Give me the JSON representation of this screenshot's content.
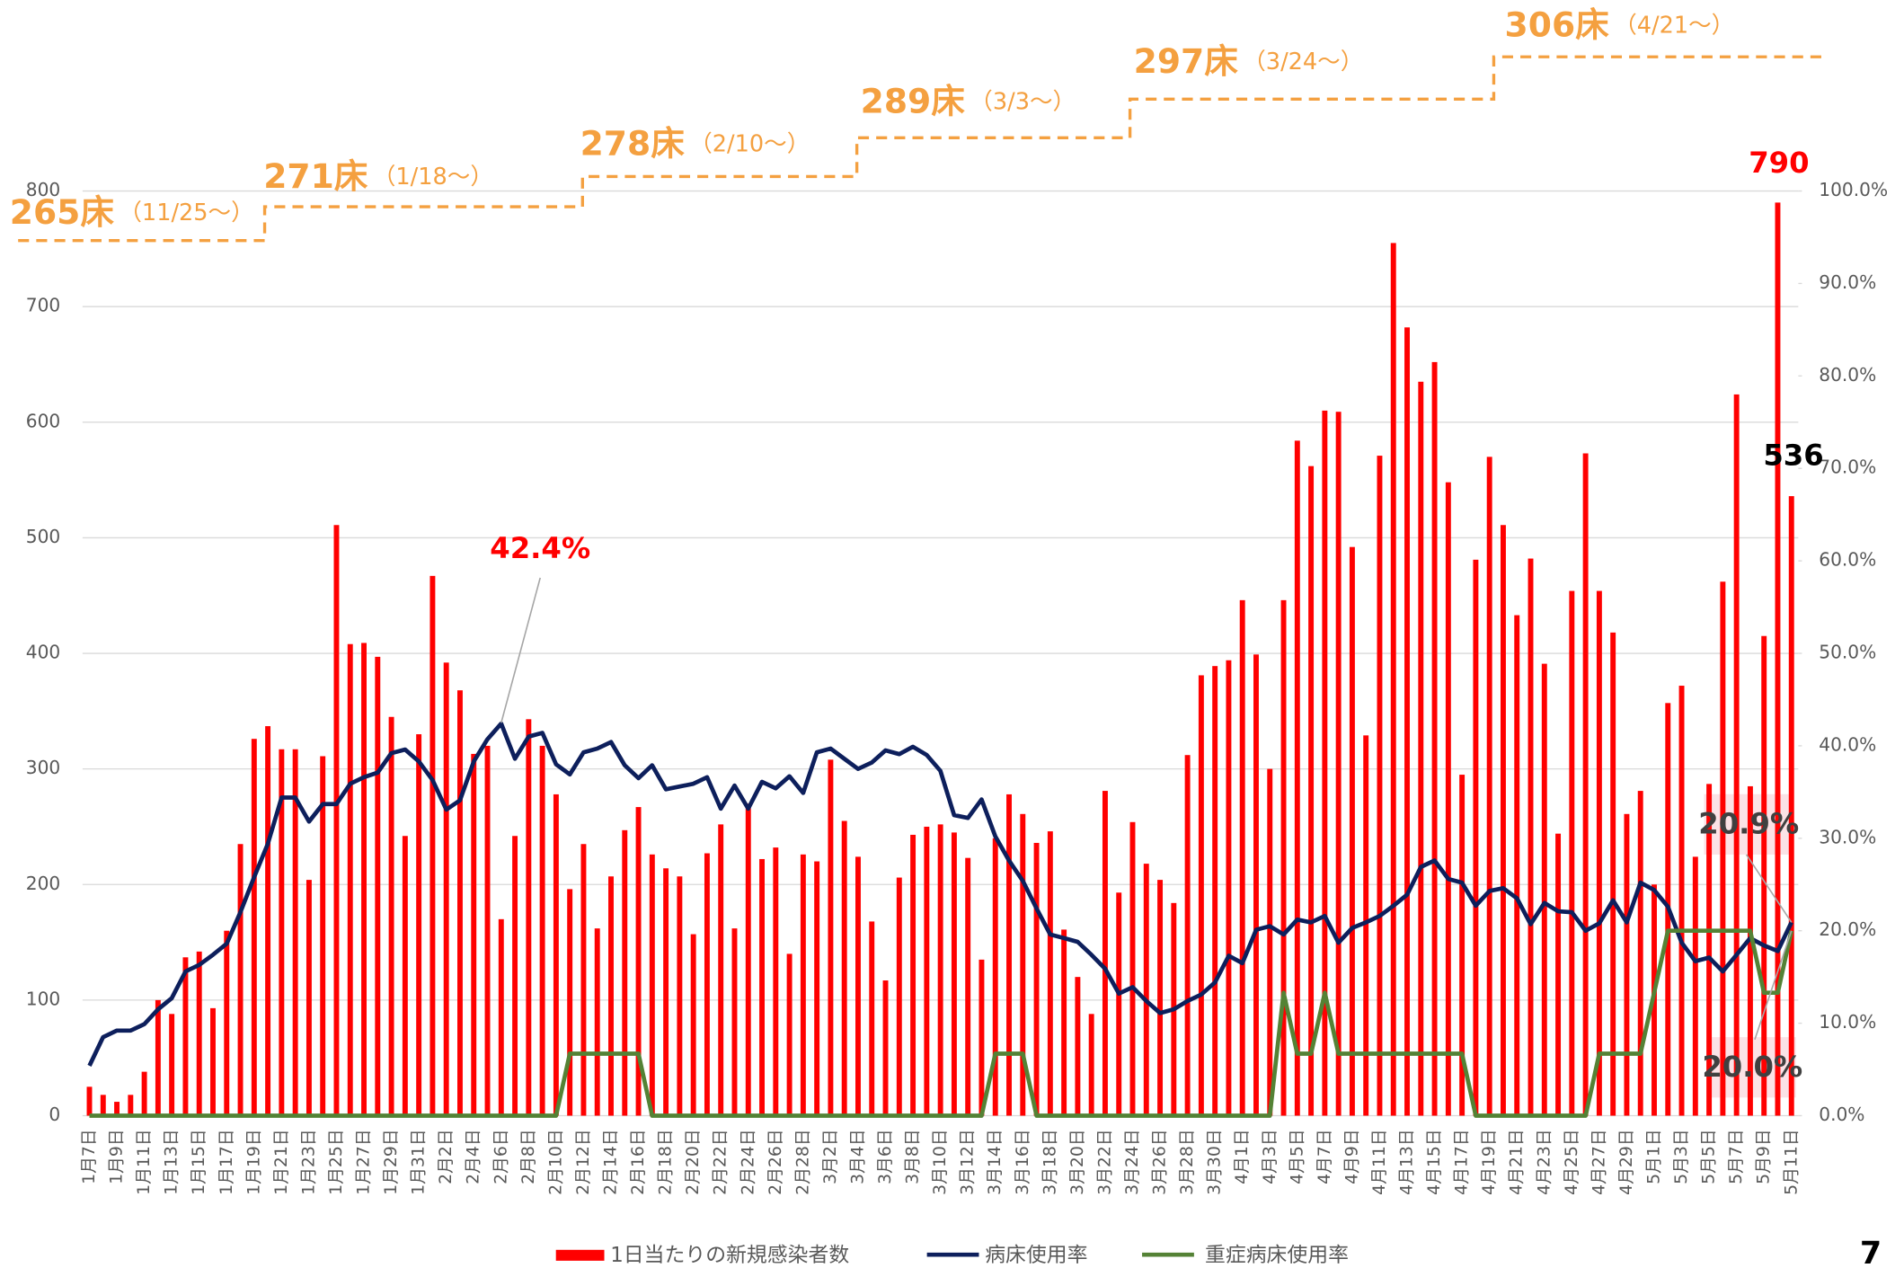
{
  "chart_data": {
    "type": "bar",
    "categories": [
      "1月7日",
      null,
      "1月9日",
      null,
      "1月11日",
      null,
      "1月13日",
      null,
      "1月15日",
      null,
      "1月17日",
      null,
      "1月19日",
      null,
      "1月21日",
      null,
      "1月23日",
      null,
      "1月25日",
      null,
      "1月27日",
      null,
      "1月29日",
      null,
      "1月31日",
      null,
      "2月2日",
      null,
      "2月4日",
      null,
      "2月6日",
      null,
      "2月8日",
      null,
      "2月10日",
      null,
      "2月12日",
      null,
      "2月14日",
      null,
      "2月16日",
      null,
      "2月18日",
      null,
      "2月20日",
      null,
      "2月22日",
      null,
      "2月24日",
      null,
      "2月26日",
      null,
      "2月28日",
      null,
      "3月2日",
      null,
      "3月4日",
      null,
      "3月6日",
      null,
      "3月8日",
      null,
      "3月10日",
      null,
      "3月12日",
      null,
      "3月14日",
      null,
      "3月16日",
      null,
      "3月18日",
      null,
      "3月20日",
      null,
      "3月22日",
      null,
      "3月24日",
      null,
      "3月26日",
      null,
      "3月28日",
      null,
      "3月30日",
      null,
      "4月1日",
      null,
      "4月3日",
      null,
      "4月5日",
      null,
      "4月7日",
      null,
      "4月9日",
      null,
      "4月11日",
      null,
      "4月13日",
      null,
      "4月15日",
      null,
      "4月17日",
      null,
      "4月19日",
      null,
      "4月21日",
      null,
      "4月23日",
      null,
      "4月25日",
      null,
      "4月27日",
      null,
      "4月29日",
      null,
      "5月1日",
      null,
      "5月3日",
      null,
      "5月5日",
      null,
      "5月7日",
      null,
      "5月9日",
      null,
      "5月11日"
    ],
    "series": [
      {
        "name": "1日当たりの新規感染者数",
        "type": "bar",
        "color": "#ff0000",
        "values": [
          25,
          18,
          12,
          18,
          38,
          100,
          88,
          137,
          142,
          93,
          160,
          235,
          326,
          337,
          317,
          317,
          204,
          311,
          511,
          408,
          409,
          397,
          345,
          242,
          330,
          467,
          392,
          368,
          313,
          320,
          170,
          242,
          343,
          320,
          278,
          196,
          235,
          162,
          207,
          247,
          267,
          226,
          214,
          207,
          157,
          227,
          252,
          162,
          270,
          222,
          232,
          140,
          226,
          220,
          308,
          255,
          224,
          168,
          117,
          206,
          243,
          250,
          252,
          245,
          223,
          135,
          240,
          278,
          261,
          236,
          246,
          161,
          120,
          88,
          281,
          193,
          254,
          218,
          204,
          184,
          312,
          381,
          389,
          394,
          446,
          399,
          300,
          446,
          584,
          562,
          610,
          609,
          492,
          329,
          571,
          755,
          682,
          635,
          652,
          548,
          295,
          481,
          570,
          511,
          433,
          482,
          391,
          244,
          454,
          573,
          454,
          418,
          261,
          281,
          200,
          357,
          372,
          224,
          287,
          462,
          624,
          285,
          415,
          790,
          536
        ]
      },
      {
        "name": "病床使用率",
        "type": "line",
        "axis": "y2",
        "color": "#0d1f5c",
        "values": [
          5.4,
          8.5,
          9.2,
          9.2,
          9.9,
          11.5,
          12.7,
          15.6,
          16.3,
          17.4,
          18.6,
          22.0,
          25.8,
          29.4,
          34.4,
          34.4,
          31.8,
          33.7,
          33.7,
          35.9,
          36.6,
          37.1,
          39.2,
          39.6,
          38.3,
          36.3,
          33.1,
          34.1,
          38.3,
          40.7,
          42.4,
          38.6,
          41.0,
          41.4,
          38.0,
          36.9,
          39.3,
          39.7,
          40.4,
          37.9,
          36.5,
          37.9,
          35.3,
          35.6,
          35.9,
          36.6,
          33.2,
          35.7,
          33.2,
          36.1,
          35.4,
          36.7,
          34.9,
          39.3,
          39.7,
          38.6,
          37.5,
          38.2,
          39.5,
          39.1,
          39.9,
          39.0,
          37.3,
          32.5,
          32.2,
          34.2,
          30.2,
          27.6,
          25.4,
          22.4,
          19.6,
          19.2,
          18.8,
          17.4,
          15.9,
          13.2,
          13.9,
          12.4,
          11.1,
          11.5,
          12.4,
          13.1,
          14.4,
          17.3,
          16.5,
          20.1,
          20.5,
          19.6,
          21.2,
          20.9,
          21.6,
          18.7,
          20.3,
          20.9,
          21.6,
          22.7,
          23.9,
          26.9,
          27.6,
          25.6,
          25.2,
          22.7,
          24.3,
          24.6,
          23.5,
          20.7,
          23.0,
          22.1,
          22.0,
          20.0,
          20.8,
          23.3,
          20.9,
          25.2,
          24.4,
          22.6,
          18.7,
          16.7,
          17.1,
          15.6,
          17.4,
          19.2,
          18.4,
          17.8,
          20.9
        ]
      },
      {
        "name": "重症病床使用率",
        "type": "line",
        "axis": "y2",
        "color": "#548235",
        "values": [
          0,
          0,
          0,
          0,
          0,
          0,
          0,
          0,
          0,
          0,
          0,
          0,
          0,
          0,
          0,
          0,
          0,
          0,
          0,
          0,
          0,
          0,
          0,
          0,
          0,
          0,
          0,
          0,
          0,
          0,
          0,
          0,
          0,
          0,
          0,
          6.7,
          6.7,
          6.7,
          6.7,
          6.7,
          6.7,
          0,
          0,
          0,
          0,
          0,
          0,
          0,
          0,
          0,
          0,
          0,
          0,
          0,
          0,
          0,
          0,
          0,
          0,
          0,
          0,
          0,
          0,
          0,
          0,
          0,
          6.7,
          6.7,
          6.7,
          0,
          0,
          0,
          0,
          0,
          0,
          0,
          0,
          0,
          0,
          0,
          0,
          0,
          0,
          0,
          0,
          0,
          0,
          13.3,
          6.7,
          6.7,
          13.3,
          6.7,
          6.7,
          6.7,
          6.7,
          6.7,
          6.7,
          6.7,
          6.7,
          6.7,
          6.7,
          0,
          0,
          0,
          0,
          0,
          0,
          0,
          0,
          0,
          6.7,
          6.7,
          6.7,
          6.7,
          13.3,
          20.0,
          20.0,
          20.0,
          20.0,
          20.0,
          20.0,
          20.0,
          13.3,
          13.3,
          20.0
        ]
      }
    ],
    "ylim": [
      0,
      800
    ],
    "yticks": [
      0,
      100,
      200,
      300,
      400,
      500,
      600,
      700,
      800
    ],
    "y2lim": [
      0,
      100
    ],
    "y2ticks": [
      {
        "value": 0,
        "label": "0.0%"
      },
      {
        "value": 10,
        "label": "10.0%"
      },
      {
        "value": 20,
        "label": "20.0%"
      },
      {
        "value": 30,
        "label": "30.0%"
      },
      {
        "value": 40,
        "label": "40.0%"
      },
      {
        "value": 50,
        "label": "50.0%"
      },
      {
        "value": 60,
        "label": "60.0%"
      },
      {
        "value": 70,
        "label": "70.0%"
      },
      {
        "value": 80,
        "label": "80.0%"
      },
      {
        "value": 90,
        "label": "90.0%"
      },
      {
        "value": 100,
        "label": "100.0%"
      }
    ],
    "grid": true,
    "legend": "bottom",
    "annotations": [
      {
        "text": "42.4%"
      },
      {
        "text": "20.9%"
      },
      {
        "text": "20.0%"
      }
    ],
    "bed_steps": [
      {
        "beds": "265床",
        "from": "（11/25～）"
      },
      {
        "beds": "271床",
        "from": "（1/18～）"
      },
      {
        "beds": "278床",
        "from": "（2/10～）"
      },
      {
        "beds": "289床",
        "from": "（3/3～）"
      },
      {
        "beds": "297床",
        "from": "（3/24～）"
      },
      {
        "beds": "306床",
        "from": "（4/21～）"
      }
    ],
    "page_number": "7"
  }
}
